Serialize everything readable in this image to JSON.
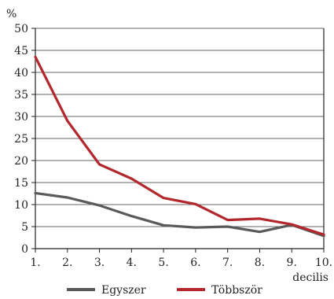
{
  "chart_data": {
    "type": "line",
    "title": "",
    "ylabel": "%",
    "xlabel": "decilis",
    "ylim": [
      0,
      50
    ],
    "y_ticks": [
      0,
      5,
      10,
      15,
      20,
      25,
      30,
      35,
      40,
      45,
      50
    ],
    "categories": [
      "1.",
      "2.",
      "3.",
      "4.",
      "5.",
      "6.",
      "7.",
      "8.",
      "9.",
      "10."
    ],
    "grid": "horizontal",
    "legend_position": "bottom",
    "series": [
      {
        "name": "Egyszer",
        "color": "#5a5a5a",
        "values": [
          12.6,
          11.6,
          9.8,
          7.4,
          5.3,
          4.8,
          5.0,
          3.8,
          5.4,
          2.9
        ]
      },
      {
        "name": "Többször",
        "color": "#b3282d",
        "values": [
          43.5,
          29.0,
          19.1,
          15.9,
          11.5,
          10.1,
          6.5,
          6.8,
          5.5,
          3.2
        ]
      }
    ]
  }
}
